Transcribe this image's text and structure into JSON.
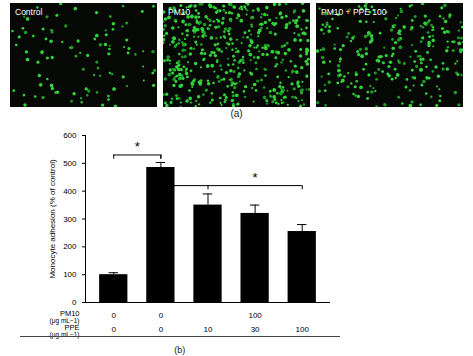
{
  "panel_a": {
    "label": "(a)",
    "panels": [
      {
        "label": "Control",
        "bar_index": 0
      },
      {
        "label": "PM10",
        "bar_index": 1
      },
      {
        "label": "PM10 + PPE 100",
        "bar_index": 4
      }
    ]
  },
  "chart_data": {
    "type": "bar",
    "panel_label": "(b)",
    "ylabel": "Monocyte adhesion (% of control)",
    "categories": [
      null,
      null,
      null,
      null,
      null
    ],
    "values": [
      100,
      485,
      350,
      320,
      255
    ],
    "errors": [
      7,
      18,
      40,
      30,
      25
    ],
    "color": "#000000",
    "ylim": [
      0,
      600
    ],
    "yticks": [
      0,
      100,
      200,
      300,
      400,
      500,
      600
    ],
    "grid": false,
    "tick_labels": "y",
    "conditions": [
      {
        "name": "PM10",
        "unit": "(μg mL−1)",
        "labels": [
          "0",
          "0",
          "100"
        ],
        "spans": [
          1,
          1,
          3
        ]
      },
      {
        "name": "PPE",
        "unit": "(μg mL−1)",
        "labels": [
          "0",
          "0",
          "10",
          "30",
          "100"
        ],
        "spans": [
          1,
          1,
          1,
          1,
          1
        ]
      }
    ],
    "significance": [
      {
        "from": 0,
        "to": [
          1,
          1
        ],
        "level": 530,
        "label": "*"
      },
      {
        "from": 1,
        "to": [
          2,
          4
        ],
        "level": 420,
        "label": "*"
      }
    ]
  }
}
